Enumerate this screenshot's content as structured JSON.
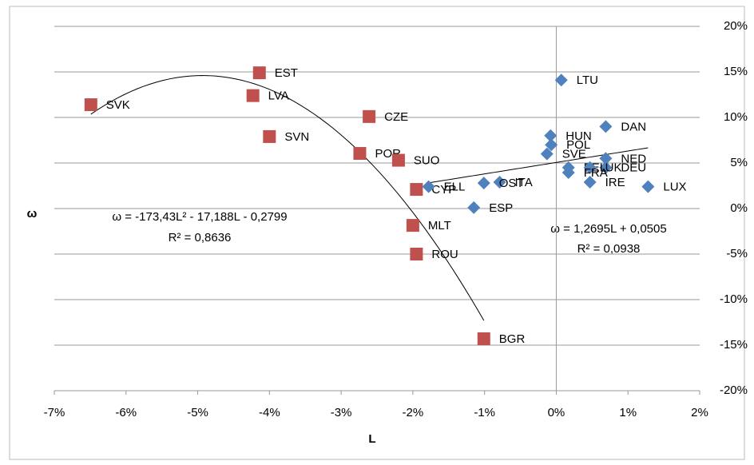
{
  "chart_data": {
    "type": "scatter",
    "x_label": "L",
    "y_label": "ω",
    "xlim": [
      -7,
      2
    ],
    "xticks": [
      {
        "value": -7,
        "label": "-7%"
      },
      {
        "value": -6,
        "label": "-6%"
      },
      {
        "value": -5,
        "label": "-5%"
      },
      {
        "value": -4,
        "label": "-4%"
      },
      {
        "value": -3,
        "label": "-3%"
      },
      {
        "value": -2,
        "label": "-2%"
      },
      {
        "value": -1,
        "label": "-1%"
      },
      {
        "value": 0,
        "label": "0%"
      },
      {
        "value": 1,
        "label": "1%"
      },
      {
        "value": 2,
        "label": "2%"
      }
    ],
    "ylim": [
      -20,
      20
    ],
    "yticks": [
      {
        "value": -20,
        "label": "-20%"
      },
      {
        "value": -15,
        "label": "-15%"
      },
      {
        "value": -10,
        "label": "-10%"
      },
      {
        "value": -5,
        "label": "-5%"
      },
      {
        "value": 0,
        "label": "0%"
      },
      {
        "value": 5,
        "label": "5%"
      },
      {
        "value": 10,
        "label": "10%"
      },
      {
        "value": 15,
        "label": "15%"
      },
      {
        "value": 20,
        "label": "20%"
      }
    ],
    "grid": true,
    "series": [
      {
        "color": "#c0504d",
        "marker": "square",
        "trendline": "quadratic",
        "labels": [
          "SVK",
          "EST",
          "LVA",
          "SVN",
          "CZE",
          "POR",
          "SUO",
          "CYP",
          "MLT",
          "ROU",
          "BGR"
        ],
        "x": [
          -6.49,
          -4.14,
          -4.23,
          -4.0,
          -2.61,
          -2.74,
          -2.2,
          -1.95,
          -2.0,
          -1.95,
          -1.01
        ],
        "values": [
          11.4,
          14.9,
          12.4,
          7.9,
          10.1,
          6.05,
          5.3,
          2.1,
          -1.85,
          -5.0,
          -14.3
        ],
        "equation": "ω = -173,43L² - 17,188L - 0,2799",
        "r2": "R² = 0,8636"
      },
      {
        "color": "#4f81bd",
        "marker": "diamond",
        "trendline": "linear",
        "labels": [
          "LTU",
          "DAN",
          "HUN",
          "POL",
          "SVE",
          "NED",
          "DEU",
          "BEL",
          "UK",
          "FRA",
          "IRE",
          "LUX",
          "ITA",
          "OST",
          "ELL",
          "ESP"
        ],
        "x": [
          0.07,
          0.69,
          -0.08,
          -0.07,
          -0.13,
          0.69,
          0.69,
          0.17,
          0.47,
          0.17,
          0.47,
          1.28,
          -0.79,
          -1.01,
          -1.78,
          -1.15
        ],
        "values": [
          14.1,
          9.0,
          8.0,
          7.0,
          6.0,
          5.5,
          4.5,
          4.5,
          4.5,
          3.95,
          2.9,
          2.4,
          2.9,
          2.8,
          2.4,
          0.1
        ],
        "equation": "ω = 1,2695L + 0,0505",
        "r2": "R² = 0,0938"
      }
    ]
  }
}
